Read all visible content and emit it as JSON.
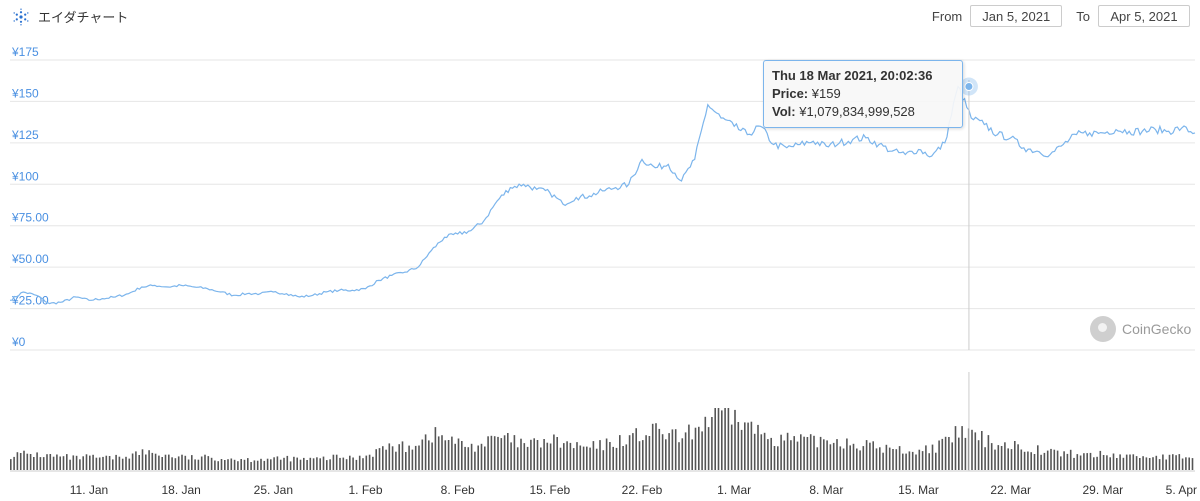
{
  "header": {
    "title": "エイダチャート",
    "logo_icon": "cardano-logo-icon",
    "from_label": "From",
    "from_value": "Jan 5, 2021",
    "to_label": "To",
    "to_value": "Apr 5, 2021"
  },
  "tooltip": {
    "date": "Thu 18 Mar 2021, 20:02:36",
    "price_label": "Price:",
    "price_value": "¥159",
    "vol_label": "Vol:",
    "vol_value": "¥1,079,834,999,528"
  },
  "watermark": "CoinGecko",
  "colors": {
    "price_line": "#7cb5ec",
    "volume_bars": "#444444",
    "axis_labels": "#4a90e2",
    "crosshair": "#cccccc"
  },
  "chart_data": {
    "type": "line",
    "x_axis": {
      "type": "datetime",
      "range": [
        "2021-01-05",
        "2021-04-05"
      ],
      "tick_labels": [
        "11. Jan",
        "18. Jan",
        "25. Jan",
        "1. Feb",
        "8. Feb",
        "15. Feb",
        "22. Feb",
        "1. Mar",
        "8. Mar",
        "15. Mar",
        "22. Mar",
        "29. Mar",
        "5. Apr"
      ],
      "tick_dates": [
        "2021-01-11",
        "2021-01-18",
        "2021-01-25",
        "2021-02-01",
        "2021-02-08",
        "2021-02-15",
        "2021-02-22",
        "2021-03-01",
        "2021-03-08",
        "2021-03-15",
        "2021-03-22",
        "2021-03-29",
        "2021-04-05"
      ]
    },
    "y_axis": {
      "range": [
        0,
        175
      ],
      "tick_values": [
        0,
        25,
        50,
        75,
        100,
        125,
        150,
        175
      ],
      "tick_labels": [
        "¥0",
        "¥25.00",
        "¥50.00",
        "¥75.00",
        "¥100",
        "¥125",
        "¥150",
        "¥175"
      ]
    },
    "grid": true,
    "series": [
      {
        "kind": "price",
        "points": [
          [
            "2021-01-05",
            30
          ],
          [
            "2021-01-06",
            35
          ],
          [
            "2021-01-07",
            33
          ],
          [
            "2021-01-08",
            28
          ],
          [
            "2021-01-09",
            29
          ],
          [
            "2021-01-10",
            32
          ],
          [
            "2021-01-11",
            30
          ],
          [
            "2021-01-12",
            31
          ],
          [
            "2021-01-13",
            32
          ],
          [
            "2021-01-14",
            34
          ],
          [
            "2021-01-15",
            38
          ],
          [
            "2021-01-16",
            39
          ],
          [
            "2021-01-17",
            38
          ],
          [
            "2021-01-18",
            39
          ],
          [
            "2021-01-19",
            38
          ],
          [
            "2021-01-20",
            37
          ],
          [
            "2021-01-21",
            35
          ],
          [
            "2021-01-22",
            33
          ],
          [
            "2021-01-23",
            34
          ],
          [
            "2021-01-24",
            34
          ],
          [
            "2021-01-25",
            35
          ],
          [
            "2021-01-26",
            34
          ],
          [
            "2021-01-27",
            32
          ],
          [
            "2021-01-28",
            33
          ],
          [
            "2021-01-29",
            35
          ],
          [
            "2021-01-30",
            36
          ],
          [
            "2021-01-31",
            36
          ],
          [
            "2021-02-01",
            37
          ],
          [
            "2021-02-02",
            42
          ],
          [
            "2021-02-03",
            45
          ],
          [
            "2021-02-04",
            47
          ],
          [
            "2021-02-05",
            50
          ],
          [
            "2021-02-06",
            60
          ],
          [
            "2021-02-07",
            68
          ],
          [
            "2021-02-08",
            70
          ],
          [
            "2021-02-09",
            72
          ],
          [
            "2021-02-10",
            78
          ],
          [
            "2021-02-11",
            90
          ],
          [
            "2021-02-12",
            98
          ],
          [
            "2021-02-13",
            100
          ],
          [
            "2021-02-14",
            97
          ],
          [
            "2021-02-15",
            95
          ],
          [
            "2021-02-16",
            88
          ],
          [
            "2021-02-17",
            92
          ],
          [
            "2021-02-18",
            93
          ],
          [
            "2021-02-19",
            96
          ],
          [
            "2021-02-20",
            98
          ],
          [
            "2021-02-21",
            100
          ],
          [
            "2021-02-22",
            115
          ],
          [
            "2021-02-23",
            110
          ],
          [
            "2021-02-24",
            112
          ],
          [
            "2021-02-25",
            102
          ],
          [
            "2021-02-26",
            115
          ],
          [
            "2021-02-27",
            148
          ],
          [
            "2021-02-28",
            140
          ],
          [
            "2021-03-01",
            135
          ],
          [
            "2021-03-02",
            130
          ],
          [
            "2021-03-03",
            135
          ],
          [
            "2021-03-04",
            124
          ],
          [
            "2021-03-05",
            122
          ],
          [
            "2021-03-06",
            124
          ],
          [
            "2021-03-07",
            126
          ],
          [
            "2021-03-08",
            123
          ],
          [
            "2021-03-09",
            125
          ],
          [
            "2021-03-10",
            127
          ],
          [
            "2021-03-11",
            128
          ],
          [
            "2021-03-12",
            124
          ],
          [
            "2021-03-13",
            120
          ],
          [
            "2021-03-14",
            118
          ],
          [
            "2021-03-15",
            121
          ],
          [
            "2021-03-16",
            117
          ],
          [
            "2021-03-17",
            125
          ],
          [
            "2021-03-18",
            159
          ],
          [
            "2021-03-19",
            140
          ],
          [
            "2021-03-20",
            136
          ],
          [
            "2021-03-21",
            130
          ],
          [
            "2021-03-22",
            128
          ],
          [
            "2021-03-23",
            122
          ],
          [
            "2021-03-24",
            120
          ],
          [
            "2021-03-25",
            118
          ],
          [
            "2021-03-26",
            124
          ],
          [
            "2021-03-27",
            130
          ],
          [
            "2021-03-28",
            131
          ],
          [
            "2021-03-29",
            131
          ],
          [
            "2021-03-30",
            133
          ],
          [
            "2021-03-31",
            132
          ],
          [
            "2021-04-01",
            132
          ],
          [
            "2021-04-02",
            133
          ],
          [
            "2021-04-03",
            132
          ],
          [
            "2021-04-04",
            134
          ],
          [
            "2021-04-05",
            131
          ]
        ]
      },
      {
        "kind": "volume",
        "relative_values": [
          0.25,
          0.27,
          0.26,
          0.24,
          0.22,
          0.2,
          0.22,
          0.2,
          0.21,
          0.25,
          0.3,
          0.28,
          0.24,
          0.22,
          0.2,
          0.21,
          0.2,
          0.19,
          0.18,
          0.19,
          0.18,
          0.2,
          0.18,
          0.18,
          0.2,
          0.22,
          0.2,
          0.25,
          0.35,
          0.4,
          0.38,
          0.5,
          0.6,
          0.55,
          0.45,
          0.4,
          0.45,
          0.55,
          0.5,
          0.42,
          0.45,
          0.5,
          0.45,
          0.4,
          0.38,
          0.42,
          0.48,
          0.55,
          0.6,
          0.65,
          0.6,
          0.52,
          0.7,
          0.85,
          1.0,
          0.9,
          0.75,
          0.62,
          0.55,
          0.52,
          0.5,
          0.48,
          0.52,
          0.5,
          0.45,
          0.42,
          0.38,
          0.35,
          0.33,
          0.32,
          0.38,
          0.45,
          0.65,
          0.6,
          0.5,
          0.45,
          0.42,
          0.4,
          0.35,
          0.3,
          0.28,
          0.27,
          0.26,
          0.26,
          0.25,
          0.24,
          0.23,
          0.23,
          0.22,
          0.22,
          0.22
        ]
      }
    ]
  }
}
